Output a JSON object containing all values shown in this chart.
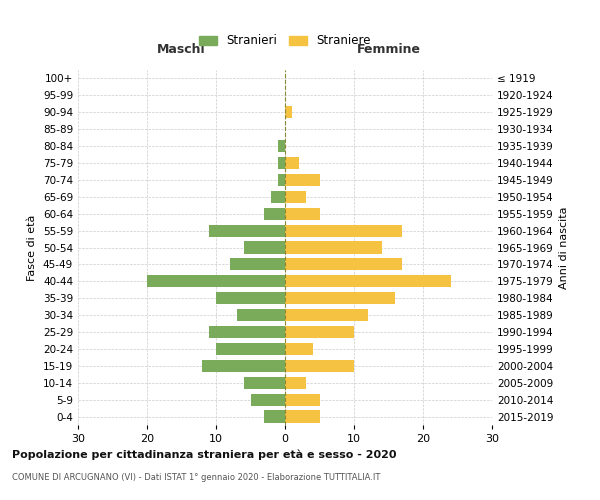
{
  "age_groups": [
    "100+",
    "95-99",
    "90-94",
    "85-89",
    "80-84",
    "75-79",
    "70-74",
    "65-69",
    "60-64",
    "55-59",
    "50-54",
    "45-49",
    "40-44",
    "35-39",
    "30-34",
    "25-29",
    "20-24",
    "15-19",
    "10-14",
    "5-9",
    "0-4"
  ],
  "birth_years": [
    "≤ 1919",
    "1920-1924",
    "1925-1929",
    "1930-1934",
    "1935-1939",
    "1940-1944",
    "1945-1949",
    "1950-1954",
    "1955-1959",
    "1960-1964",
    "1965-1969",
    "1970-1974",
    "1975-1979",
    "1980-1984",
    "1985-1989",
    "1990-1994",
    "1995-1999",
    "2000-2004",
    "2005-2009",
    "2010-2014",
    "2015-2019"
  ],
  "maschi": [
    0,
    0,
    0,
    0,
    1,
    1,
    1,
    2,
    3,
    11,
    6,
    8,
    20,
    10,
    7,
    11,
    10,
    12,
    6,
    5,
    3
  ],
  "femmine": [
    0,
    0,
    1,
    0,
    0,
    2,
    5,
    3,
    5,
    17,
    14,
    17,
    24,
    16,
    12,
    10,
    4,
    10,
    3,
    5,
    5
  ],
  "color_maschi": "#7aab5a",
  "color_femmine": "#f5c242",
  "title": "Popolazione per cittadinanza straniera per età e sesso - 2020",
  "subtitle": "COMUNE DI ARCUGNANO (VI) - Dati ISTAT 1° gennaio 2020 - Elaborazione TUTTITALIA.IT",
  "ylabel_left": "Fasce di età",
  "ylabel_right": "Anni di nascita",
  "xlabel_maschi": "Maschi",
  "xlabel_femmine": "Femmine",
  "legend_maschi": "Stranieri",
  "legend_femmine": "Straniere",
  "xlim": 30,
  "background_color": "#ffffff",
  "grid_color": "#cccccc"
}
